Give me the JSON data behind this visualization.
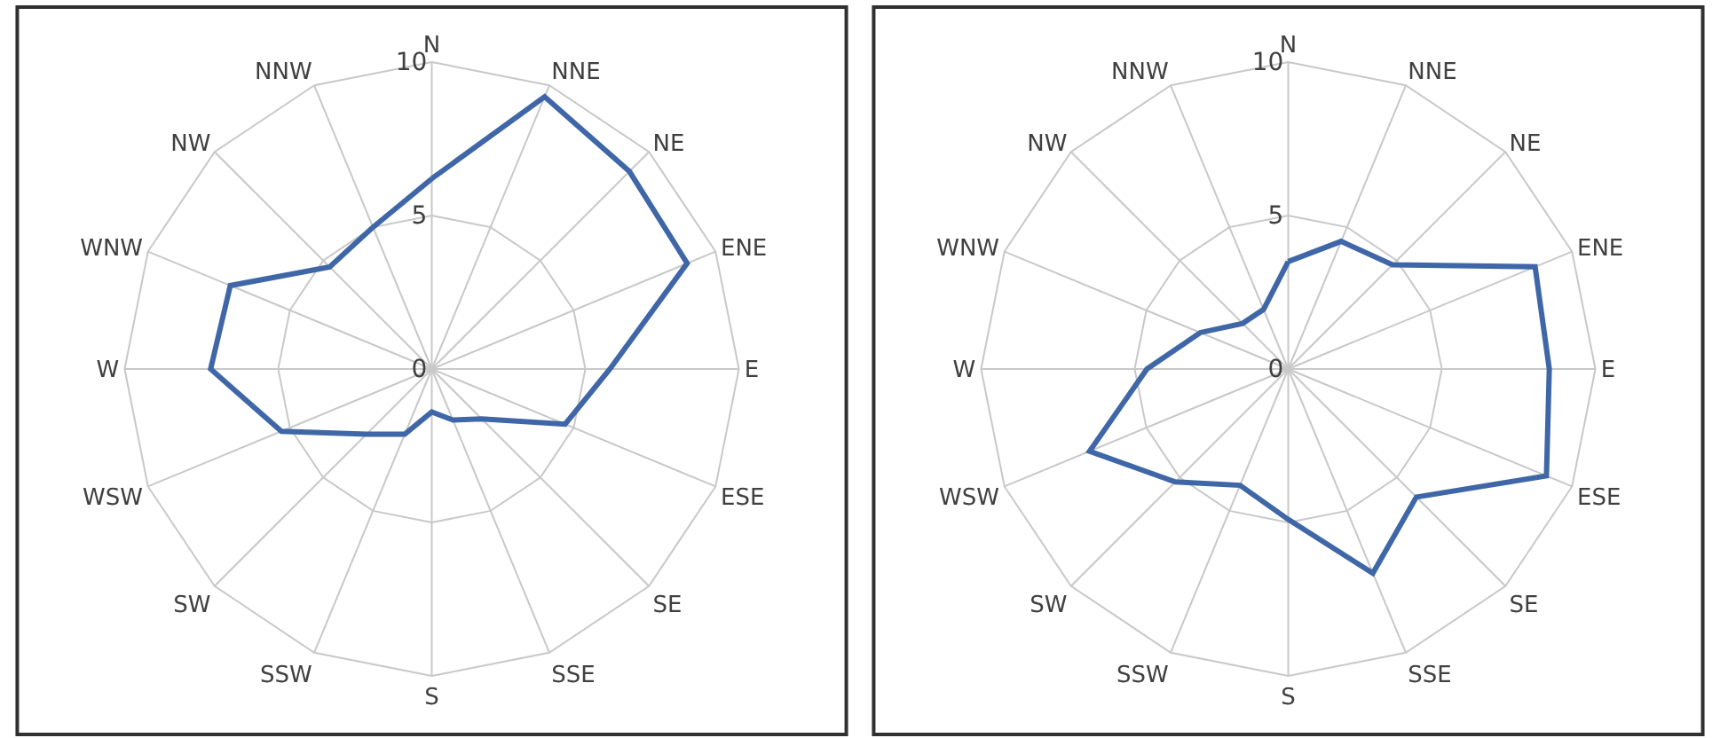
{
  "chart_data": [
    {
      "type": "radar",
      "categories": [
        "N",
        "NNE",
        "NE",
        "ENE",
        "E",
        "ESE",
        "SE",
        "SSE",
        "S",
        "SSW",
        "SW",
        "WSW",
        "W",
        "WNW",
        "NW",
        "NNW"
      ],
      "ylim": [
        0,
        10
      ],
      "yticks": [
        0,
        5,
        10
      ],
      "grid": true,
      "series": [
        {
          "color": "#3f67a8",
          "values": [
            6.2,
            9.6,
            9.1,
            9.0,
            5.8,
            4.7,
            2.3,
            1.8,
            1.4,
            2.3,
            3.0,
            5.3,
            7.2,
            7.1,
            4.7,
            5.0
          ]
        }
      ]
    },
    {
      "type": "radar",
      "categories": [
        "N",
        "NNE",
        "NE",
        "ENE",
        "E",
        "ESE",
        "SE",
        "SSE",
        "S",
        "SSW",
        "SW",
        "WSW",
        "W",
        "WNW",
        "NW",
        "NNW"
      ],
      "ylim": [
        0,
        10
      ],
      "yticks": [
        0,
        5,
        10
      ],
      "grid": true,
      "series": [
        {
          "color": "#3f67a8",
          "values": [
            3.5,
            4.5,
            4.8,
            8.7,
            8.5,
            9.1,
            5.9,
            7.2,
            4.9,
            4.1,
            5.2,
            7.0,
            4.6,
            3.1,
            2.1,
            2.1
          ]
        }
      ]
    }
  ]
}
